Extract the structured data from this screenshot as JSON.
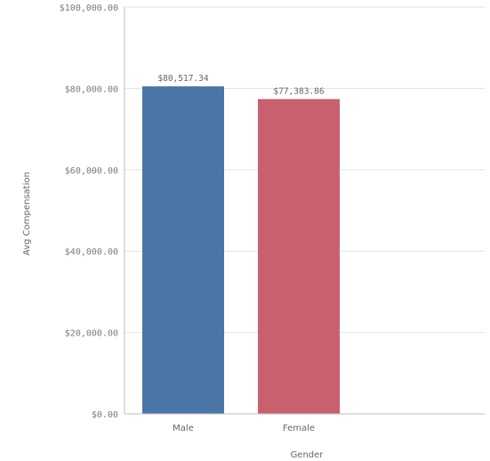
{
  "chart_data": {
    "type": "bar",
    "categories": [
      "Male",
      "Female"
    ],
    "values": [
      80517.34,
      77383.86
    ],
    "value_labels": [
      "$80,517.34",
      "$77,383.86"
    ],
    "colors": [
      "#4a77a8",
      "#c9606e"
    ],
    "xlabel": "Gender",
    "ylabel": "Avg Compensation",
    "ylim": [
      0,
      100000
    ],
    "yticks": [
      0,
      20000,
      40000,
      60000,
      80000,
      100000
    ],
    "ytick_labels": [
      "$0.00",
      "$20,000.00",
      "$40,000.00",
      "$60,000.00",
      "$80,000.00",
      "$100,000.00"
    ],
    "grid": true,
    "legend": "none"
  }
}
